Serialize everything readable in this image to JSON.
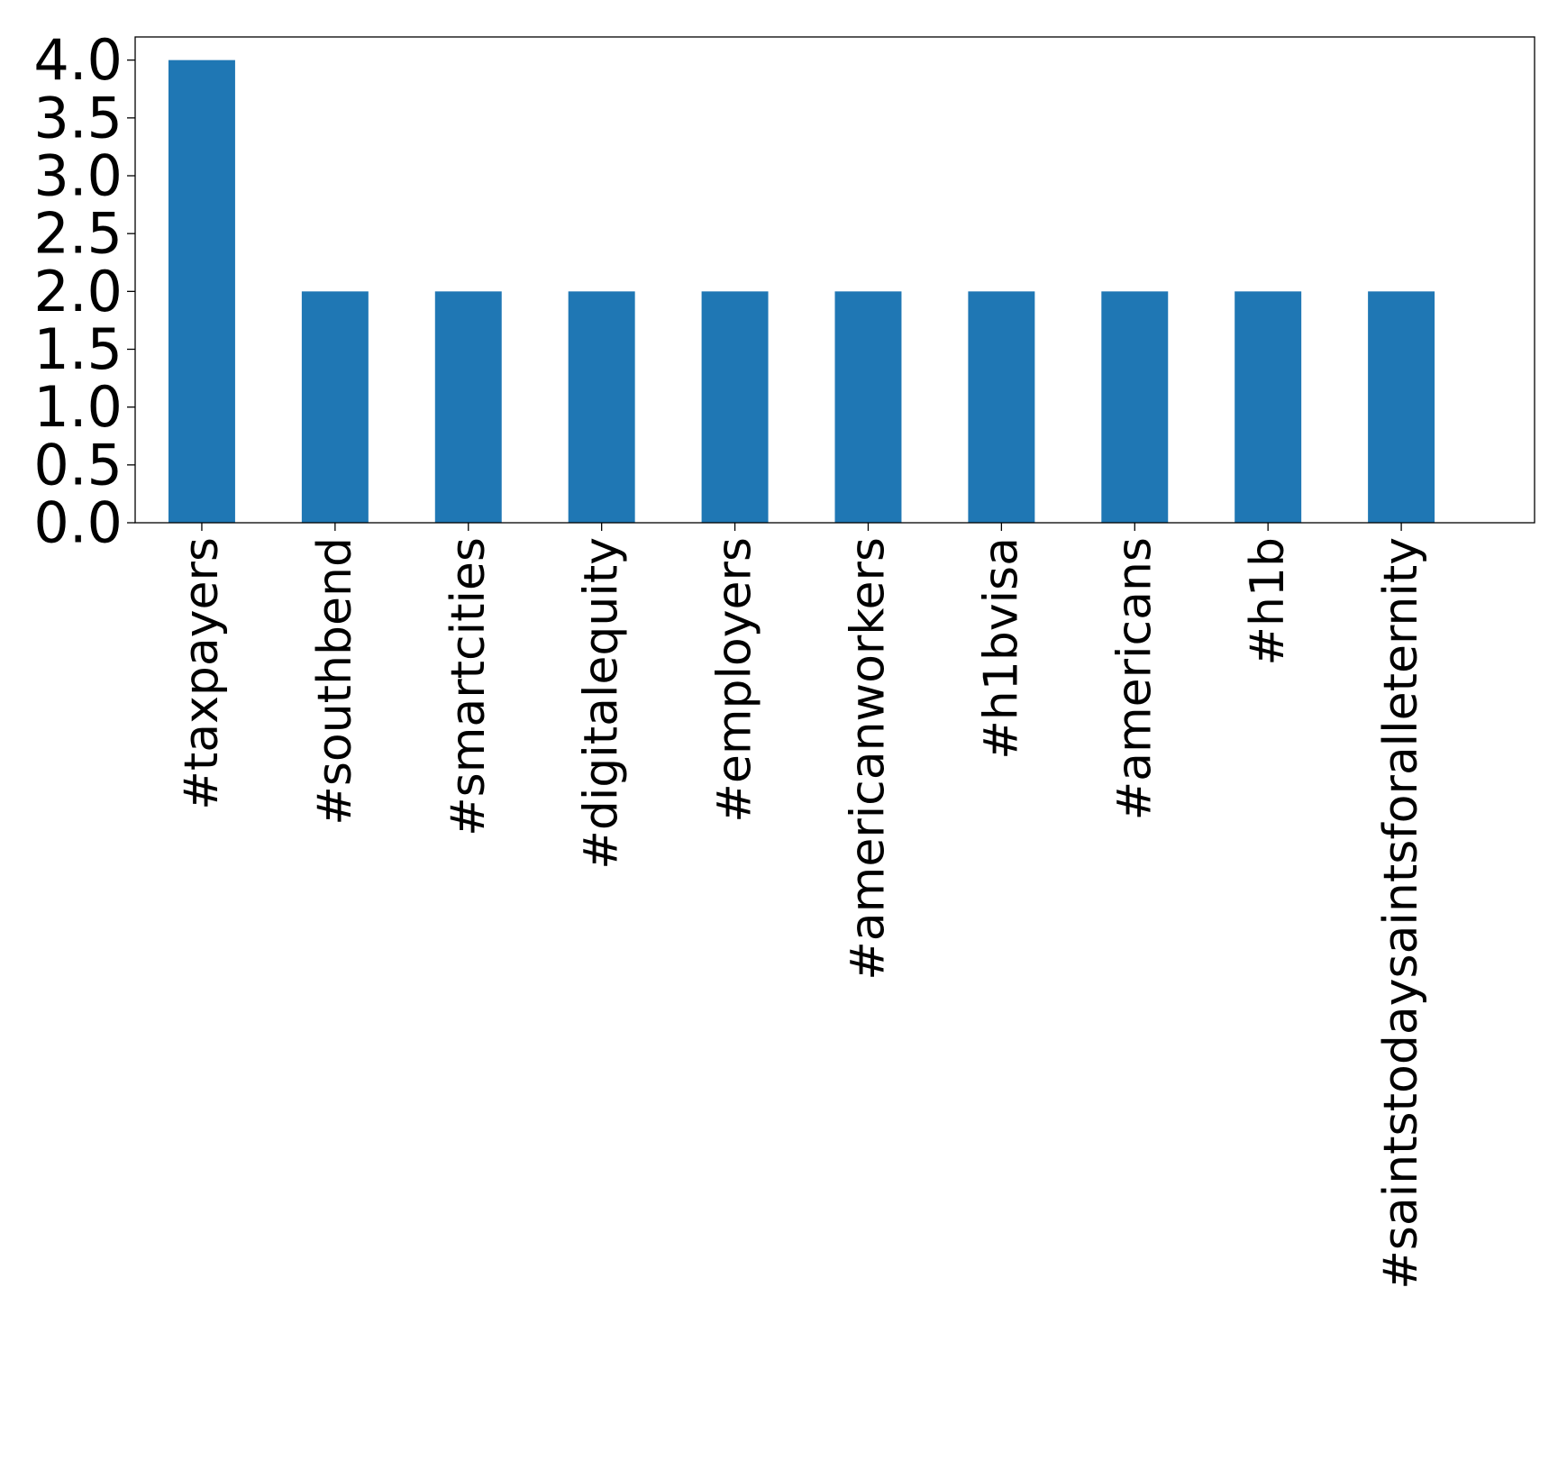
{
  "chart_data": {
    "type": "bar",
    "categories": [
      "#taxpayers",
      "#southbend",
      "#smartcities",
      "#digitalequity",
      "#employers",
      "#americanworkers",
      "#h1bvisa",
      "#americans",
      "#h1b",
      "#saintstodaysaintsforalleternity"
    ],
    "values": [
      4,
      2,
      2,
      2,
      2,
      2,
      2,
      2,
      2,
      2
    ],
    "ylim": [
      0,
      4.2
    ],
    "yticks": [
      0.0,
      0.5,
      1.0,
      1.5,
      2.0,
      2.5,
      3.0,
      3.5,
      4.0
    ],
    "ytick_labels": [
      "0.0",
      "0.5",
      "1.0",
      "1.5",
      "2.0",
      "2.5",
      "3.0",
      "3.5",
      "4.0"
    ],
    "title": "",
    "xlabel": "",
    "ylabel": "",
    "grid": false,
    "legend": "none",
    "colors": {
      "bar": "#1f77b4",
      "axis": "#000000",
      "background": "#ffffff"
    }
  }
}
